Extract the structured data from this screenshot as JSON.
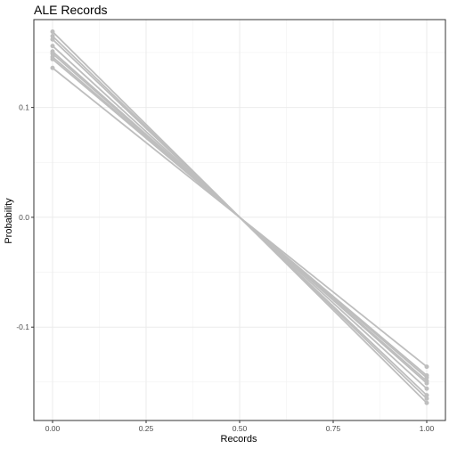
{
  "chart_data": {
    "type": "line",
    "title": "ALE Records",
    "xlabel": "Records",
    "ylabel": "Probability",
    "xlim": [
      -0.05,
      1.05
    ],
    "ylim": [
      -0.185,
      0.18
    ],
    "x_ticks": [
      0.0,
      0.25,
      0.5,
      0.75,
      1.0
    ],
    "x_tick_labels": [
      "0.00",
      "0.25",
      "0.50",
      "0.75",
      "1.00"
    ],
    "y_ticks": [
      -0.1,
      0.0,
      0.1
    ],
    "y_tick_labels": [
      "-0.1",
      "0.0",
      "0.1"
    ],
    "grid": true,
    "line_color": "#bebebe",
    "series": [
      {
        "x": [
          0,
          0.5,
          1
        ],
        "values": [
          0.169,
          0.0,
          -0.169
        ]
      },
      {
        "x": [
          0,
          0.5,
          1
        ],
        "values": [
          0.165,
          0.0,
          -0.165
        ]
      },
      {
        "x": [
          0,
          0.5,
          1
        ],
        "values": [
          0.162,
          0.0,
          -0.162
        ]
      },
      {
        "x": [
          0,
          0.5,
          1
        ],
        "values": [
          0.156,
          0.0,
          -0.156
        ]
      },
      {
        "x": [
          0,
          0.5,
          1
        ],
        "values": [
          0.151,
          0.0,
          -0.151
        ]
      },
      {
        "x": [
          0,
          0.5,
          1
        ],
        "values": [
          0.149,
          0.0,
          -0.149
        ]
      },
      {
        "x": [
          0,
          0.5,
          1
        ],
        "values": [
          0.146,
          0.0,
          -0.146
        ]
      },
      {
        "x": [
          0,
          0.5,
          1
        ],
        "values": [
          0.144,
          0.0,
          -0.144
        ]
      },
      {
        "x": [
          0,
          0.5,
          1
        ],
        "values": [
          0.136,
          0.0,
          -0.136
        ]
      }
    ]
  }
}
